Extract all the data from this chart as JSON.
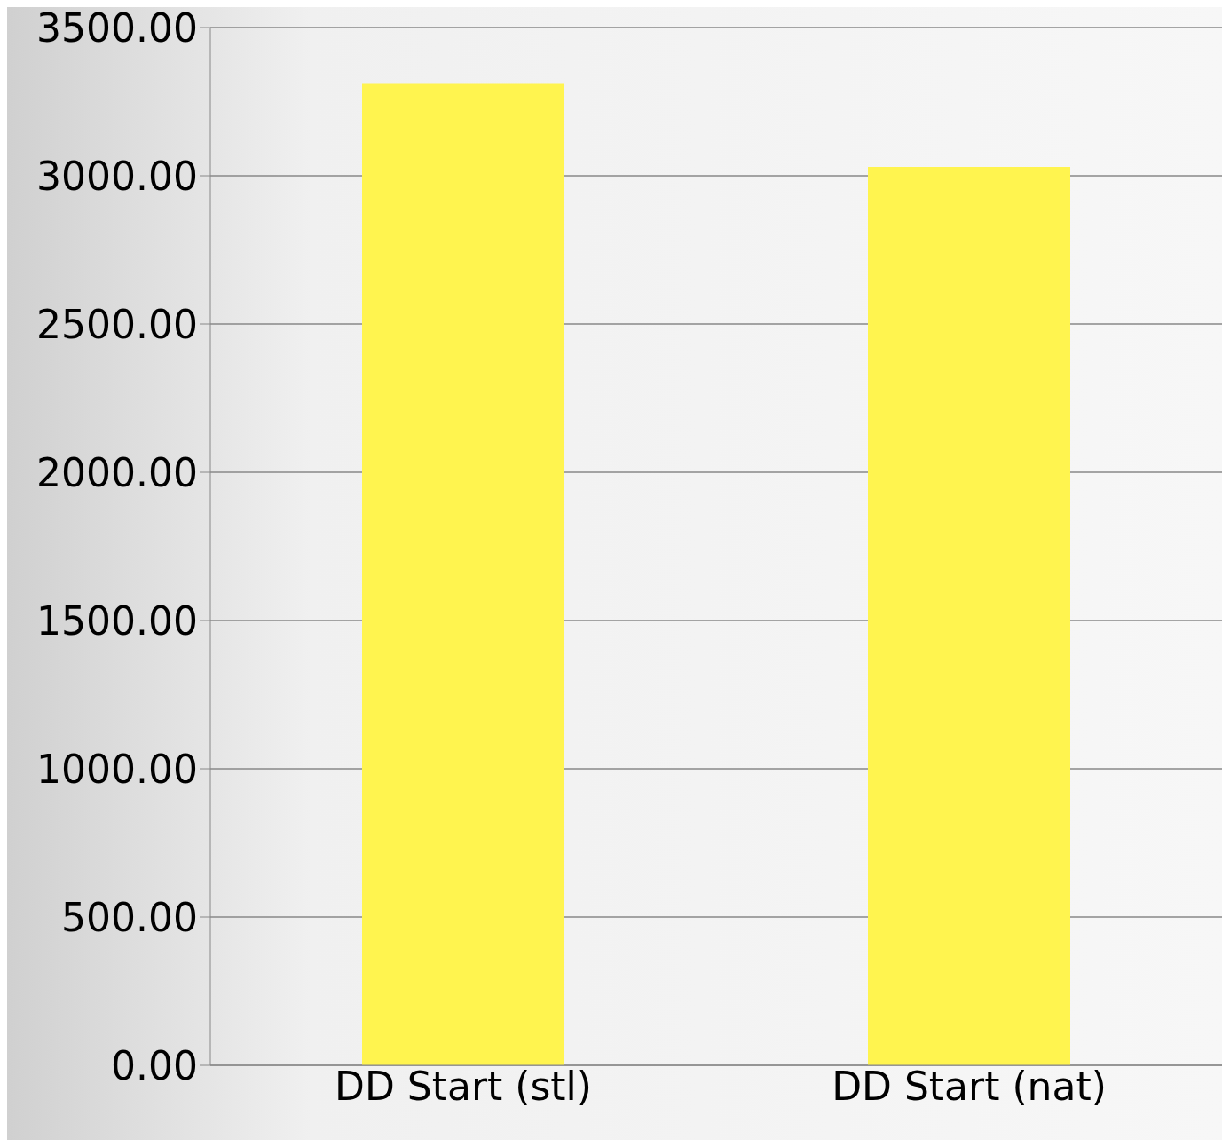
{
  "chart_data": {
    "type": "bar",
    "categories": [
      "DD Start (stl)",
      "DD Start (nat)"
    ],
    "values": [
      3310,
      3030
    ],
    "color": "#fff44f",
    "ylim": [
      0,
      3500
    ],
    "yticks": [
      {
        "value": 0,
        "label": "0.00"
      },
      {
        "value": 500,
        "label": "500.00"
      },
      {
        "value": 1000,
        "label": "1000.00"
      },
      {
        "value": 1500,
        "label": "1500.00"
      },
      {
        "value": 2000,
        "label": "2000.00"
      },
      {
        "value": 2500,
        "label": "2500.00"
      },
      {
        "value": 3000,
        "label": "3000.00"
      },
      {
        "value": 3500,
        "label": "3500.00"
      }
    ],
    "grid": "y"
  }
}
